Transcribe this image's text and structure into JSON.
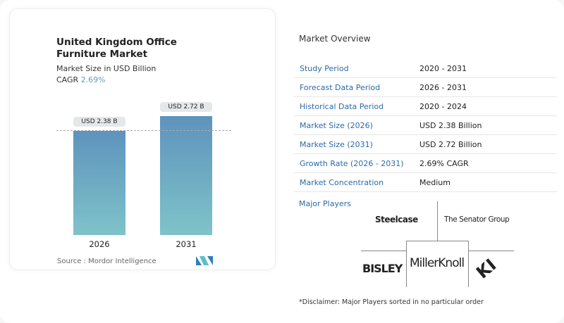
{
  "chart_data": {
    "type": "bar",
    "title": "United Kingdom Office Furniture Market",
    "subtitle": "Market Size in USD Billion",
    "cagr_label": "CAGR",
    "cagr_value": "2.69%",
    "categories": [
      "2026",
      "2031"
    ],
    "values": [
      2.38,
      2.72
    ],
    "data_labels": [
      "USD 2.38 B",
      "USD 2.72 B"
    ],
    "colors": [
      "#5e93bd",
      "#7fc3c9"
    ]
  },
  "source": "Source :  Mordor Intelligence",
  "overview": {
    "title": "Market Overview",
    "rows": [
      {
        "k": "Study Period",
        "v": "2020 - 2031"
      },
      {
        "k": "Forecast Data Period",
        "v": "2026 - 2031"
      },
      {
        "k": "Historical Data Period",
        "v": "2020 - 2024"
      },
      {
        "k": "Market Size (2026)",
        "v": "USD 2.38 Billion"
      },
      {
        "k": "Market Size (2031)",
        "v": "USD 2.72 Billion"
      },
      {
        "k": "Growth Rate (2026 - 2031)",
        "v": "2.69% CAGR"
      },
      {
        "k": "Market Concentration",
        "v": "Medium"
      }
    ]
  },
  "players": {
    "title": "Major Players",
    "logos": [
      "Steelcase",
      "The Senator Group",
      "MillerKnoll",
      "BISLEY",
      "KI"
    ]
  },
  "disclaimer": "*Disclaimer: Major Players sorted in no particular order"
}
